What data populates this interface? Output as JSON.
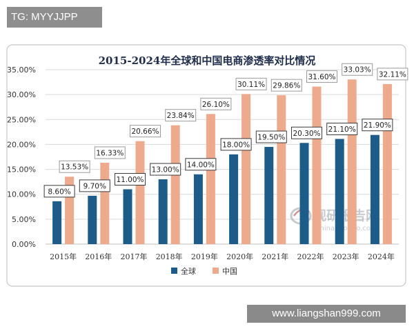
{
  "top_watermark": "TG: MYYJJPP",
  "site_watermark": "www.liangshan999.com",
  "logo_watermark": {
    "text_cn": "观研报告网",
    "text_en": "chinabaogao.com"
  },
  "colors": {
    "global": "#1d5c88",
    "china": "#eeaa8c",
    "grid": "#d9d9d9",
    "frame": "#c8c8c8"
  },
  "chart_data": {
    "type": "bar",
    "title": "2015-2024年全球和中国电商渗透率对比情况",
    "categories": [
      "2015年",
      "2016年",
      "2017年",
      "2018年",
      "2019年",
      "2020年",
      "2021年",
      "2022年",
      "2023年",
      "2024年"
    ],
    "series": [
      {
        "name": "全球",
        "values": [
          8.6,
          9.7,
          11.0,
          13.0,
          14.0,
          18.0,
          19.5,
          20.3,
          21.1,
          21.9
        ],
        "labels": [
          "8.60%",
          "9.70%",
          "11.00%",
          "13.00%",
          "14.00%",
          "18.00%",
          "19.50%",
          "20.30%",
          "21.10%",
          "21.90%"
        ]
      },
      {
        "name": "中国",
        "values": [
          13.53,
          16.33,
          20.66,
          23.84,
          26.1,
          30.11,
          29.86,
          31.6,
          33.03,
          32.11
        ],
        "labels": [
          "13.53%",
          "16.33%",
          "20.66%",
          "23.84%",
          "26.10%",
          "30.11%",
          "29.86%",
          "31.60%",
          "33.03%",
          "32.11%"
        ]
      }
    ],
    "ylim": [
      0,
      35
    ],
    "yticks": [
      "0.00%",
      "5.00%",
      "10.00%",
      "15.00%",
      "20.00%",
      "25.00%",
      "30.00%",
      "35.00%"
    ],
    "grid": true,
    "legend_position": "bottom"
  }
}
